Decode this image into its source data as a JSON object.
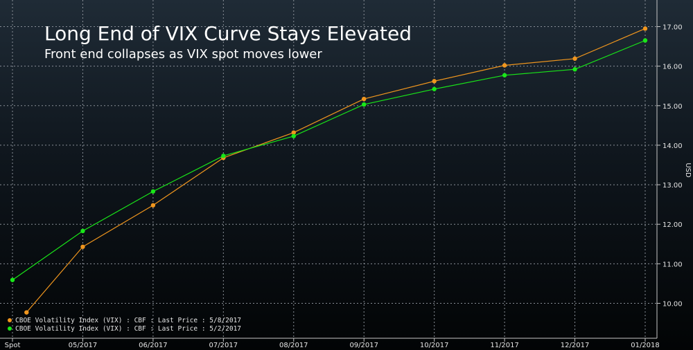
{
  "chart_data": {
    "type": "line",
    "title": "Long End of VIX Curve Stays Elevated",
    "subtitle": "Front end collapses as VIX spot moves lower",
    "ylabel": "USD",
    "ylim": [
      9.5,
      17.5
    ],
    "yticks": [
      10,
      11,
      12,
      13,
      14,
      15,
      16,
      17
    ],
    "ytick_labels": [
      "10.00",
      "11.00",
      "12.00",
      "13.00",
      "14.00",
      "15.00",
      "16.00",
      "17.00"
    ],
    "categories": [
      "Spot",
      "05/2017",
      "06/2017",
      "07/2017",
      "08/2017",
      "09/2017",
      "10/2017",
      "11/2017",
      "12/2017",
      "01/2018"
    ],
    "grid": true,
    "legend_position": "bottom-left",
    "series": [
      {
        "name": "CBOE Volatility Index (VIX) : CBF : Last Price : 5/8/2017",
        "color": "#f0961e",
        "x": [
          0.2,
          1,
          2,
          3,
          4,
          5,
          6,
          7,
          8,
          9
        ],
        "values": [
          9.77,
          11.43,
          12.48,
          13.68,
          14.32,
          15.17,
          15.62,
          16.02,
          16.19,
          16.95
        ]
      },
      {
        "name": "CBOE Volatility Index (VIX) : CBF : Last Price : 5/2/2017",
        "color": "#19e619",
        "x": [
          0,
          1,
          2,
          3,
          4,
          5,
          6,
          7,
          8,
          9
        ],
        "values": [
          10.59,
          11.83,
          12.83,
          13.73,
          14.23,
          15.03,
          15.42,
          15.77,
          15.92,
          16.65
        ]
      }
    ]
  }
}
